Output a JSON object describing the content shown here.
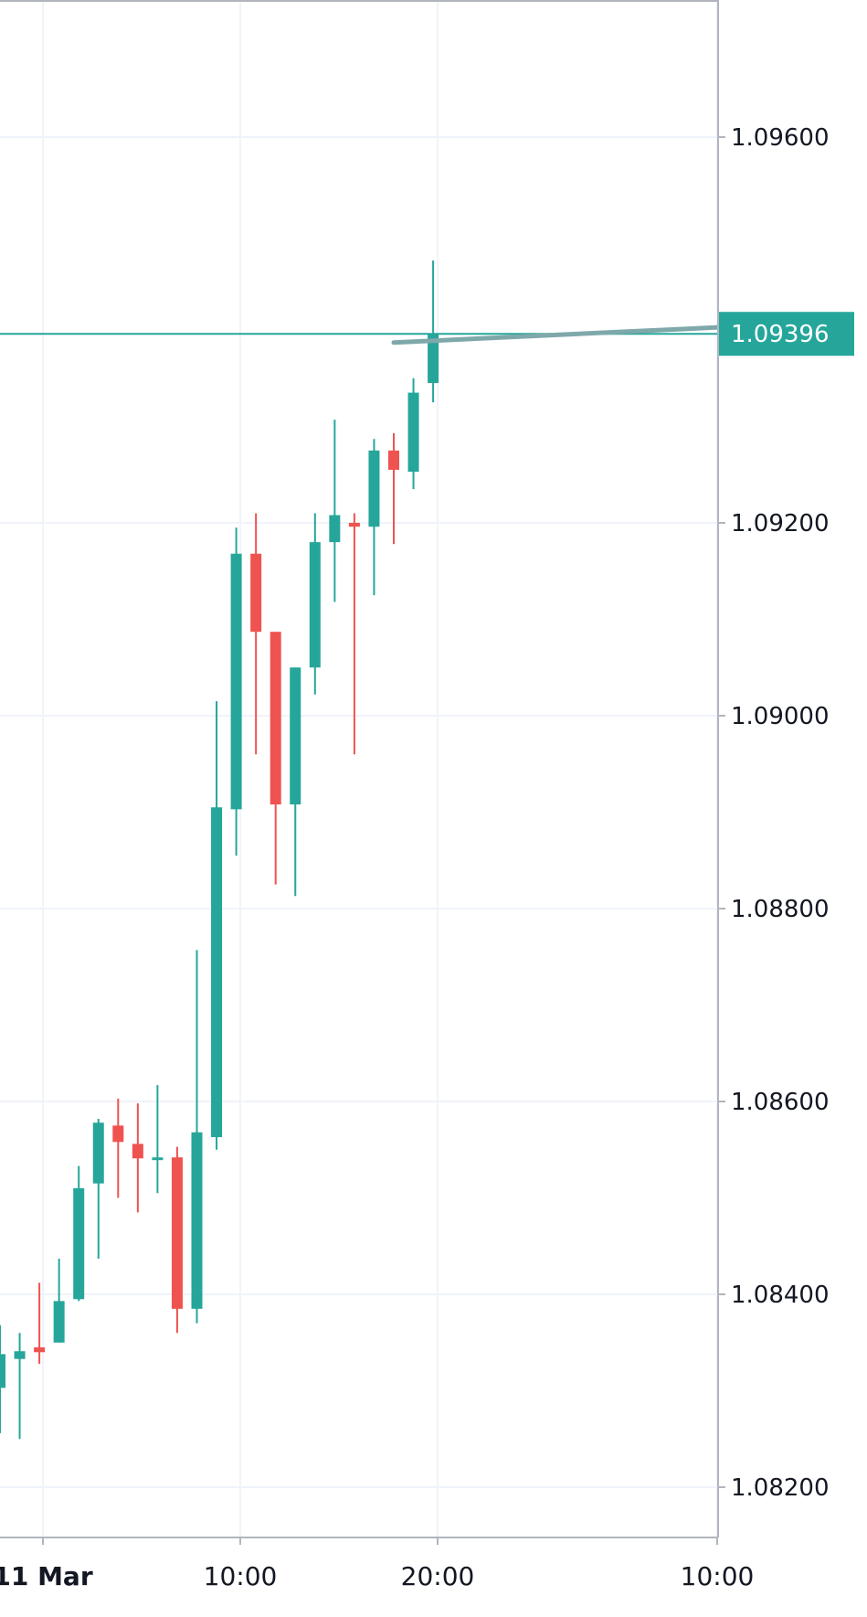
{
  "chart_data": {
    "type": "candlestick",
    "y_axis": {
      "ticks": [
        1.082,
        1.084,
        1.086,
        1.088,
        1.09,
        1.092,
        1.096
      ],
      "tick_labels": [
        "1.08200",
        "1.08400",
        "1.08600",
        "1.08800",
        "1.09000",
        "1.09200",
        "1.09600"
      ],
      "range": [
        1.0812,
        1.0974
      ]
    },
    "x_axis": {
      "labels": [
        {
          "text": "11 Mar",
          "bold": true
        },
        {
          "text": "10:00",
          "bold": false
        },
        {
          "text": "20:00",
          "bold": false
        },
        {
          "text": "10:00",
          "bold": false
        }
      ]
    },
    "grid": true,
    "colors": {
      "up": "#26a69a",
      "down": "#ef5350",
      "grid": "#f0f3fa",
      "axis": "#b2b5be",
      "price_line": "#26a69a",
      "trend_line": "#7fa8ab"
    },
    "last_price": {
      "value": 1.09396,
      "label": "1.09396"
    },
    "trend_line": {
      "start": {
        "bar": 20,
        "price": 1.09387
      },
      "end": {
        "bar": 42,
        "price": 1.09408
      }
    },
    "candles": [
      {
        "o": 1.08303,
        "h": 1.08368,
        "l": 1.08256,
        "c": 1.08338
      },
      {
        "o": 1.08333,
        "h": 1.0836,
        "l": 1.0825,
        "c": 1.08341
      },
      {
        "o": 1.08345,
        "h": 1.08412,
        "l": 1.08328,
        "c": 1.0834
      },
      {
        "o": 1.0835,
        "h": 1.08437,
        "l": 1.0835,
        "c": 1.08393
      },
      {
        "o": 1.08395,
        "h": 1.08533,
        "l": 1.08393,
        "c": 1.0851
      },
      {
        "o": 1.08515,
        "h": 1.08582,
        "l": 1.08437,
        "c": 1.08578
      },
      {
        "o": 1.08575,
        "h": 1.08603,
        "l": 1.085,
        "c": 1.08558
      },
      {
        "o": 1.08556,
        "h": 1.08598,
        "l": 1.08485,
        "c": 1.08541
      },
      {
        "o": 1.08542,
        "h": 1.08617,
        "l": 1.08505,
        "c": 1.08542
      },
      {
        "o": 1.08542,
        "h": 1.08553,
        "l": 1.0836,
        "c": 1.08385
      },
      {
        "o": 1.08385,
        "h": 1.08757,
        "l": 1.0837,
        "c": 1.08568
      },
      {
        "o": 1.08563,
        "h": 1.09015,
        "l": 1.0855,
        "c": 1.08905
      },
      {
        "o": 1.08903,
        "h": 1.09195,
        "l": 1.08855,
        "c": 1.09168
      },
      {
        "o": 1.09168,
        "h": 1.0921,
        "l": 1.0896,
        "c": 1.09087
      },
      {
        "o": 1.09087,
        "h": 1.09087,
        "l": 1.08825,
        "c": 1.08908
      },
      {
        "o": 1.08908,
        "h": 1.0905,
        "l": 1.08813,
        "c": 1.0905
      },
      {
        "o": 1.0905,
        "h": 1.0921,
        "l": 1.09022,
        "c": 1.0918
      },
      {
        "o": 1.0918,
        "h": 1.09307,
        "l": 1.09118,
        "c": 1.09208
      },
      {
        "o": 1.092,
        "h": 1.0921,
        "l": 1.0896,
        "c": 1.09196
      },
      {
        "o": 1.09196,
        "h": 1.09287,
        "l": 1.09125,
        "c": 1.09275
      },
      {
        "o": 1.09275,
        "h": 1.09293,
        "l": 1.09178,
        "c": 1.09255
      },
      {
        "o": 1.09253,
        "h": 1.0935,
        "l": 1.09235,
        "c": 1.09335
      },
      {
        "o": 1.09345,
        "h": 1.09472,
        "l": 1.09325,
        "c": 1.09396
      }
    ]
  }
}
